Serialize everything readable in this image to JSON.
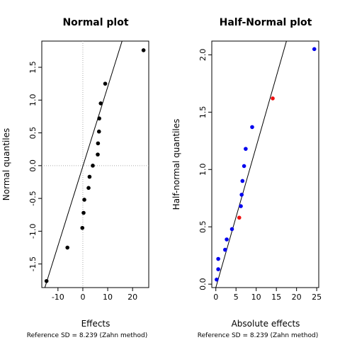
{
  "chart_data": [
    {
      "type": "scatter",
      "title": "Normal plot",
      "xlabel": "Effects",
      "ylabel": "Normal quantiles",
      "footnote": "Reference SD = 8.239 (Zahn method)",
      "xlim": [
        -16.5,
        26.5
      ],
      "ylim": [
        -1.86,
        1.9
      ],
      "xticks": [
        -10,
        0,
        10,
        20
      ],
      "yticks": [
        -1.5,
        -1.0,
        -0.5,
        0.0,
        0.5,
        1.0,
        1.5
      ],
      "grid": "dotted zero lines",
      "colors": {
        "points": "#000000",
        "line": "#000000",
        "zero_lines": "#aaaaaa"
      },
      "points": [
        {
          "x": -14.6,
          "y": -1.76
        },
        {
          "x": -6.2,
          "y": -1.25
        },
        {
          "x": -0.2,
          "y": -0.95
        },
        {
          "x": 0.3,
          "y": -0.72
        },
        {
          "x": 0.6,
          "y": -0.52
        },
        {
          "x": 2.3,
          "y": -0.34
        },
        {
          "x": 2.7,
          "y": -0.17
        },
        {
          "x": 4.0,
          "y": 0.0
        },
        {
          "x": 6.0,
          "y": 0.17
        },
        {
          "x": 6.1,
          "y": 0.34
        },
        {
          "x": 6.5,
          "y": 0.52
        },
        {
          "x": 6.6,
          "y": 0.72
        },
        {
          "x": 7.2,
          "y": 0.95
        },
        {
          "x": 9.0,
          "y": 1.25
        },
        {
          "x": 24.4,
          "y": 1.76
        }
      ],
      "reference_line": [
        {
          "x": -16.5,
          "y": -2.01
        },
        {
          "x": 26.5,
          "y": 3.2
        }
      ]
    },
    {
      "type": "scatter",
      "title": "Half-Normal plot",
      "xlabel": "Absolute effects",
      "ylabel": "Half-normal quantiles",
      "footnote": "Reference SD = 8.239 (Zahn method)",
      "xlim": [
        -1.0,
        25.5
      ],
      "ylim": [
        -0.03,
        2.12
      ],
      "xticks": [
        0,
        5,
        10,
        15,
        20,
        25
      ],
      "yticks": [
        0.0,
        0.5,
        1.0,
        1.5,
        2.0
      ],
      "colors": {
        "normal": "#0000ee",
        "highlight": "#ee1111",
        "line": "#000000"
      },
      "points": [
        {
          "x": 0.2,
          "y": 0.04,
          "color": "normal"
        },
        {
          "x": 0.6,
          "y": 0.13,
          "color": "normal"
        },
        {
          "x": 0.6,
          "y": 0.22,
          "color": "normal"
        },
        {
          "x": 2.3,
          "y": 0.3,
          "color": "normal"
        },
        {
          "x": 2.7,
          "y": 0.39,
          "color": "normal"
        },
        {
          "x": 4.0,
          "y": 0.48,
          "color": "normal"
        },
        {
          "x": 5.8,
          "y": 0.58,
          "color": "highlight"
        },
        {
          "x": 6.2,
          "y": 0.68,
          "color": "normal"
        },
        {
          "x": 6.4,
          "y": 0.78,
          "color": "normal"
        },
        {
          "x": 6.6,
          "y": 0.9,
          "color": "normal"
        },
        {
          "x": 7.0,
          "y": 1.03,
          "color": "normal"
        },
        {
          "x": 7.4,
          "y": 1.18,
          "color": "normal"
        },
        {
          "x": 9.0,
          "y": 1.37,
          "color": "normal"
        },
        {
          "x": 14.1,
          "y": 1.62,
          "color": "highlight"
        },
        {
          "x": 24.4,
          "y": 2.05,
          "color": "normal"
        }
      ],
      "reference_line": [
        {
          "x": 0.0,
          "y": -0.03
        },
        {
          "x": 17.5,
          "y": 2.12
        }
      ]
    }
  ]
}
